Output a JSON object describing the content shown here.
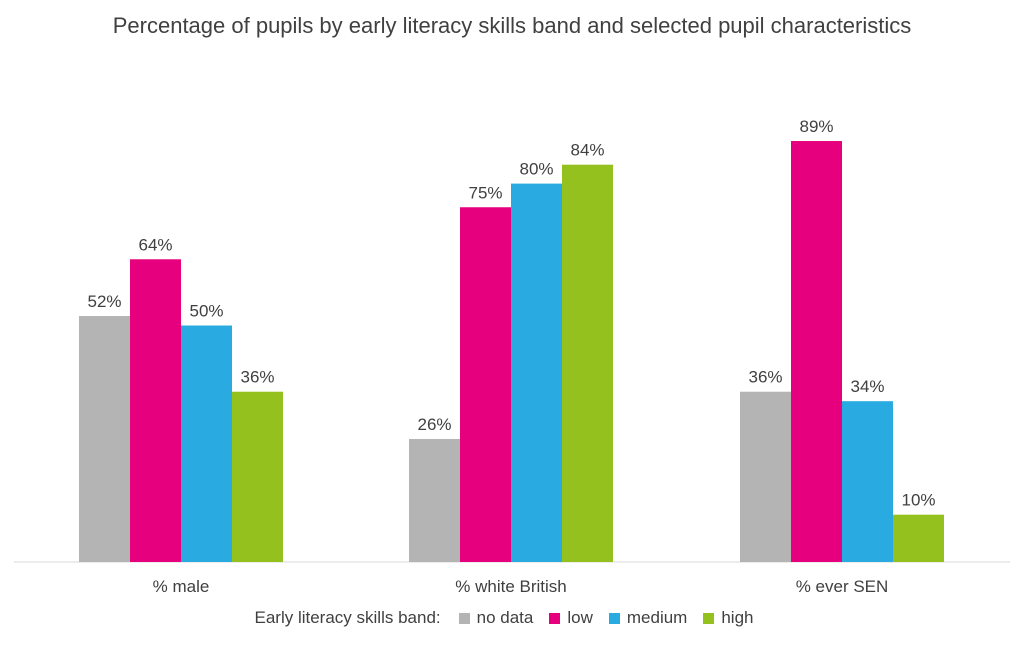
{
  "chart_data": {
    "type": "bar",
    "title": "Percentage of pupils by early literacy skills band and selected pupil characteristics",
    "categories": [
      "% male",
      "% white British",
      "% ever SEN"
    ],
    "series": [
      {
        "name": "no data",
        "color": "#b4b4b4",
        "values": [
          52,
          26,
          36
        ],
        "labels": [
          "52%",
          "26%",
          "36%"
        ]
      },
      {
        "name": "low",
        "color": "#e6007e",
        "values": [
          64,
          75,
          89
        ],
        "labels": [
          "64%",
          "75%",
          "89%"
        ]
      },
      {
        "name": "medium",
        "color": "#29abe2",
        "values": [
          50,
          80,
          34
        ],
        "labels": [
          "50%",
          "80%",
          "34%"
        ]
      },
      {
        "name": "high",
        "color": "#95c11f",
        "values": [
          36,
          84,
          10
        ],
        "labels": [
          "36%",
          "84%",
          "10%"
        ]
      }
    ],
    "ylim": [
      0,
      95
    ],
    "legend_title": "Early literacy skills band:",
    "legend_position": "bottom",
    "grid": false
  }
}
